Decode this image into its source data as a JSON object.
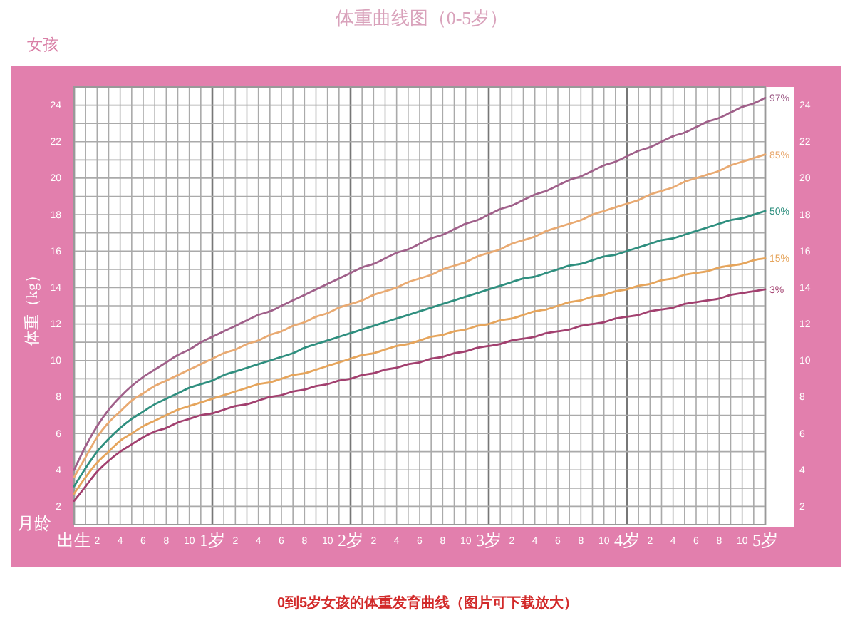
{
  "chart_data": {
    "type": "line",
    "title": "体重曲线图（0-5岁）",
    "subtitle": "女孩",
    "xlabel": "月龄",
    "ylabel": "体重（kg）",
    "annotations": [
      "0到5岁女孩的体重发育曲线（图片可下载放大）"
    ],
    "categories": [
      "出生",
      null,
      "2",
      null,
      "4",
      null,
      "6",
      null,
      "8",
      null,
      "10",
      null,
      "1岁",
      null,
      "2",
      null,
      "4",
      null,
      "6",
      null,
      "8",
      null,
      "10",
      null,
      "2岁",
      null,
      "2",
      null,
      "4",
      null,
      "6",
      null,
      "8",
      null,
      "10",
      null,
      "3岁",
      null,
      "2",
      null,
      "4",
      null,
      "6",
      null,
      "8",
      null,
      "10",
      null,
      "4岁",
      null,
      "2",
      null,
      "4",
      null,
      "6",
      null,
      "8",
      null,
      "10",
      null,
      "5岁"
    ],
    "series": [
      {
        "name": "97%",
        "color": "#a0608a",
        "values": [
          4.0,
          5.3,
          6.4,
          7.3,
          8.0,
          8.6,
          9.1,
          9.5,
          9.9,
          10.3,
          10.6,
          11.0,
          11.3,
          11.6,
          11.9,
          12.2,
          12.5,
          12.7,
          13.0,
          13.3,
          13.6,
          13.9,
          14.2,
          14.5,
          14.8,
          15.1,
          15.3,
          15.6,
          15.9,
          16.1,
          16.4,
          16.7,
          16.9,
          17.2,
          17.5,
          17.7,
          18.0,
          18.3,
          18.5,
          18.8,
          19.1,
          19.3,
          19.6,
          19.9,
          20.1,
          20.4,
          20.7,
          20.9,
          21.2,
          21.5,
          21.7,
          22.0,
          22.3,
          22.5,
          22.8,
          23.1,
          23.3,
          23.6,
          23.9,
          24.1,
          24.4
        ]
      },
      {
        "name": "85%",
        "color": "#e9aa72",
        "values": [
          3.6,
          4.7,
          5.8,
          6.6,
          7.2,
          7.8,
          8.2,
          8.6,
          8.9,
          9.2,
          9.5,
          9.8,
          10.1,
          10.4,
          10.6,
          10.9,
          11.1,
          11.4,
          11.6,
          11.9,
          12.1,
          12.4,
          12.6,
          12.9,
          13.1,
          13.3,
          13.6,
          13.8,
          14.0,
          14.3,
          14.5,
          14.7,
          15.0,
          15.2,
          15.4,
          15.7,
          15.9,
          16.1,
          16.4,
          16.6,
          16.8,
          17.1,
          17.3,
          17.5,
          17.7,
          18.0,
          18.2,
          18.4,
          18.6,
          18.8,
          19.1,
          19.3,
          19.5,
          19.8,
          20.0,
          20.2,
          20.4,
          20.7,
          20.9,
          21.1,
          21.3
        ]
      },
      {
        "name": "50%",
        "color": "#2f8f7f",
        "values": [
          3.1,
          4.1,
          5.0,
          5.7,
          6.3,
          6.8,
          7.2,
          7.6,
          7.9,
          8.2,
          8.5,
          8.7,
          8.9,
          9.2,
          9.4,
          9.6,
          9.8,
          10.0,
          10.2,
          10.4,
          10.7,
          10.9,
          11.1,
          11.3,
          11.5,
          11.7,
          11.9,
          12.1,
          12.3,
          12.5,
          12.7,
          12.9,
          13.1,
          13.3,
          13.5,
          13.7,
          13.9,
          14.1,
          14.3,
          14.5,
          14.6,
          14.8,
          15.0,
          15.2,
          15.3,
          15.5,
          15.7,
          15.8,
          16.0,
          16.2,
          16.4,
          16.6,
          16.7,
          16.9,
          17.1,
          17.3,
          17.5,
          17.7,
          17.8,
          18.0,
          18.2
        ]
      },
      {
        "name": "15%",
        "color": "#e6a55c",
        "values": [
          2.7,
          3.6,
          4.4,
          5.0,
          5.6,
          6.0,
          6.4,
          6.7,
          7.0,
          7.3,
          7.5,
          7.7,
          7.9,
          8.1,
          8.3,
          8.5,
          8.7,
          8.8,
          9.0,
          9.2,
          9.3,
          9.5,
          9.7,
          9.9,
          10.1,
          10.3,
          10.4,
          10.6,
          10.8,
          10.9,
          11.1,
          11.3,
          11.4,
          11.6,
          11.7,
          11.9,
          12.0,
          12.2,
          12.3,
          12.5,
          12.7,
          12.8,
          13.0,
          13.2,
          13.3,
          13.5,
          13.6,
          13.8,
          13.9,
          14.1,
          14.2,
          14.4,
          14.5,
          14.7,
          14.8,
          14.9,
          15.1,
          15.2,
          15.3,
          15.5,
          15.6
        ]
      },
      {
        "name": "3%",
        "color": "#a2406f",
        "values": [
          2.3,
          3.1,
          3.9,
          4.5,
          5.0,
          5.4,
          5.8,
          6.1,
          6.3,
          6.6,
          6.8,
          7.0,
          7.1,
          7.3,
          7.5,
          7.6,
          7.8,
          8.0,
          8.1,
          8.3,
          8.4,
          8.6,
          8.7,
          8.9,
          9.0,
          9.2,
          9.3,
          9.5,
          9.6,
          9.8,
          9.9,
          10.1,
          10.2,
          10.4,
          10.5,
          10.7,
          10.8,
          10.9,
          11.1,
          11.2,
          11.3,
          11.5,
          11.6,
          11.7,
          11.9,
          12.0,
          12.1,
          12.3,
          12.4,
          12.5,
          12.7,
          12.8,
          12.9,
          13.1,
          13.2,
          13.3,
          13.4,
          13.6,
          13.7,
          13.8,
          13.9
        ]
      }
    ],
    "ylim": [
      1,
      25
    ],
    "yticks": [
      2,
      {
        "value": 3,
        "label": null
      },
      4,
      {
        "value": 5,
        "label": null
      },
      6,
      {
        "value": 7,
        "label": null
      },
      8,
      {
        "value": 9,
        "label": null
      },
      10,
      {
        "value": 11,
        "label": null
      },
      12,
      {
        "value": 13,
        "label": null
      },
      14,
      {
        "value": 15,
        "label": null
      },
      16,
      {
        "value": 17,
        "label": null
      },
      18,
      {
        "value": 19,
        "label": null
      },
      20,
      {
        "value": 21,
        "label": null
      },
      22,
      {
        "value": 23,
        "label": null
      },
      24
    ],
    "y2lim": [
      1,
      25
    ],
    "y2ticks": [
      2,
      4,
      6,
      8,
      10,
      12,
      14,
      16,
      18,
      20,
      22,
      24
    ],
    "grid": true
  }
}
